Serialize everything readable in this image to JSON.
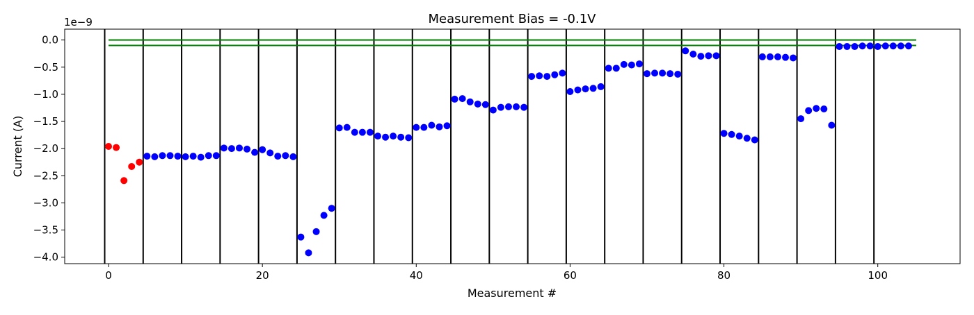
{
  "chart_data": {
    "type": "scatter",
    "title": "Measurement Bias = -0.1V",
    "xlabel": "Measurement #",
    "ylabel": "Current (A)",
    "y_offset_text": "1e−9",
    "xlim": [
      -5.7,
      110.7
    ],
    "ylim": [
      -4.12,
      0.2
    ],
    "xticks": [
      0,
      20,
      40,
      60,
      80,
      100
    ],
    "xtick_labels": [
      "0",
      "20",
      "40",
      "60",
      "80",
      "100"
    ],
    "yticks": [
      0.0,
      -0.5,
      -1.0,
      -1.5,
      -2.0,
      -2.5,
      -3.0,
      -3.5,
      -4.0
    ],
    "ytick_labels": [
      "0.0",
      "−0.5",
      "−1.0",
      "−1.5",
      "−2.0",
      "−2.5",
      "−3.0",
      "−3.5",
      "−4.0"
    ],
    "grid": false,
    "vlines_x": [
      -0.5,
      4.5,
      9.5,
      14.5,
      19.5,
      24.5,
      29.5,
      34.5,
      39.5,
      44.5,
      49.5,
      54.5,
      59.5,
      64.5,
      69.5,
      74.5,
      79.5,
      84.5,
      89.5,
      94.5,
      99.5
    ],
    "vline_color": "#000000",
    "hlines": [
      {
        "y": 0.0,
        "xmin": 0,
        "xmax": 105,
        "color": "#008000"
      },
      {
        "y": -0.1,
        "xmin": 0,
        "xmax": 105,
        "color": "#008000"
      }
    ],
    "series": [
      {
        "color": "#ff0000",
        "x": [
          0,
          1,
          2,
          3,
          4
        ],
        "y": [
          -1.96,
          -1.98,
          -2.59,
          -2.33,
          -2.25
        ]
      },
      {
        "color": "#0000ff",
        "x": [
          5,
          6,
          7,
          8,
          9,
          10,
          11,
          12,
          13,
          14,
          15,
          16,
          17,
          18,
          19,
          20,
          21,
          22,
          23,
          24,
          25,
          26,
          27,
          28,
          29,
          30,
          31,
          32,
          33,
          34,
          35,
          36,
          37,
          38,
          39,
          40,
          41,
          42,
          43,
          44,
          45,
          46,
          47,
          48,
          49,
          50,
          51,
          52,
          53,
          54,
          55,
          56,
          57,
          58,
          59,
          60,
          61,
          62,
          63,
          64,
          65,
          66,
          67,
          68,
          69,
          70,
          71,
          72,
          73,
          74,
          75,
          76,
          77,
          78,
          79,
          80,
          81,
          82,
          83,
          84,
          85,
          86,
          87,
          88,
          89,
          90,
          91,
          92,
          93,
          94,
          95,
          96,
          97,
          98,
          99,
          100,
          101,
          102,
          103,
          104
        ],
        "y": [
          -2.14,
          -2.15,
          -2.13,
          -2.13,
          -2.14,
          -2.15,
          -2.14,
          -2.16,
          -2.13,
          -2.13,
          -1.99,
          -2.0,
          -1.99,
          -2.01,
          -2.07,
          -2.02,
          -2.08,
          -2.14,
          -2.13,
          -2.15,
          -3.63,
          -3.92,
          -3.53,
          -3.23,
          -3.1,
          -1.62,
          -1.61,
          -1.7,
          -1.7,
          -1.7,
          -1.77,
          -1.79,
          -1.77,
          -1.79,
          -1.8,
          -1.61,
          -1.61,
          -1.57,
          -1.6,
          -1.58,
          -1.09,
          -1.08,
          -1.14,
          -1.18,
          -1.19,
          -1.29,
          -1.24,
          -1.23,
          -1.23,
          -1.24,
          -0.67,
          -0.66,
          -0.67,
          -0.64,
          -0.61,
          -0.95,
          -0.92,
          -0.9,
          -0.89,
          -0.86,
          -0.52,
          -0.52,
          -0.45,
          -0.46,
          -0.44,
          -0.62,
          -0.61,
          -0.61,
          -0.62,
          -0.63,
          -0.2,
          -0.26,
          -0.3,
          -0.29,
          -0.29,
          -1.72,
          -1.74,
          -1.77,
          -1.81,
          -1.84,
          -0.31,
          -0.31,
          -0.31,
          -0.32,
          -0.33,
          -1.45,
          -1.3,
          -1.26,
          -1.27,
          -1.57,
          -0.12,
          -0.12,
          -0.12,
          -0.11,
          -0.11,
          -0.12,
          -0.11,
          -0.11,
          -0.11,
          -0.11
        ]
      }
    ]
  }
}
